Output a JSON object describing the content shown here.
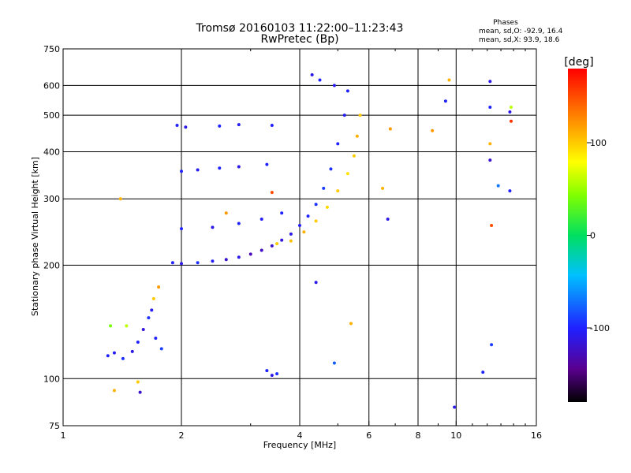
{
  "chart_data": {
    "type": "scatter",
    "title": "Tromsø 20160103 11:22:00–11:23:43",
    "subtitle": "RwPretec (Bp)",
    "xlabel": "Frequency [MHz]",
    "ylabel": "Stationary phase Virtual Height [km]",
    "x_scale": "log",
    "y_scale": "log",
    "xlim": [
      1,
      16
    ],
    "ylim": [
      75,
      750
    ],
    "x_ticks": [
      1,
      2,
      4,
      6,
      8,
      10,
      16
    ],
    "x_tick_labels": [
      "1",
      "2",
      "4",
      "6",
      "8",
      "10",
      "16"
    ],
    "y_ticks": [
      75,
      100,
      200,
      300,
      400,
      500,
      600,
      750
    ],
    "y_tick_labels": [
      "75",
      "100",
      "200",
      "300",
      "400",
      "500",
      "600",
      "750"
    ],
    "grid": true,
    "phases_info": {
      "title": "Phases",
      "line_o": "mean, sd,O:  -92.9, 16.4",
      "line_x": "mean, sd,X:  93.9, 18.6"
    },
    "colorbar": {
      "label": "[deg]",
      "ticks": [
        100,
        0,
        -100
      ],
      "tick_labels": [
        "100",
        "0",
        "-100"
      ],
      "range": [
        -180,
        180
      ]
    },
    "points": [
      {
        "x": 1.3,
        "y": 115,
        "p": -100
      },
      {
        "x": 1.35,
        "y": 117,
        "p": -105
      },
      {
        "x": 1.42,
        "y": 113,
        "p": -95
      },
      {
        "x": 1.5,
        "y": 118,
        "p": -110
      },
      {
        "x": 1.55,
        "y": 125,
        "p": -100
      },
      {
        "x": 1.6,
        "y": 135,
        "p": -115
      },
      {
        "x": 1.65,
        "y": 145,
        "p": -95
      },
      {
        "x": 1.68,
        "y": 152,
        "p": -105
      },
      {
        "x": 1.72,
        "y": 128,
        "p": -100
      },
      {
        "x": 1.78,
        "y": 120,
        "p": -90
      },
      {
        "x": 1.32,
        "y": 138,
        "p": 40
      },
      {
        "x": 1.45,
        "y": 138,
        "p": 60
      },
      {
        "x": 1.7,
        "y": 163,
        "p": 100
      },
      {
        "x": 1.75,
        "y": 175,
        "p": 120
      },
      {
        "x": 1.35,
        "y": 93,
        "p": 110
      },
      {
        "x": 1.55,
        "y": 98,
        "p": 100
      },
      {
        "x": 1.57,
        "y": 92,
        "p": -120
      },
      {
        "x": 1.4,
        "y": 300,
        "p": 110
      },
      {
        "x": 1.9,
        "y": 203,
        "p": -100
      },
      {
        "x": 2.0,
        "y": 202,
        "p": -110
      },
      {
        "x": 2.2,
        "y": 203,
        "p": -95
      },
      {
        "x": 2.4,
        "y": 205,
        "p": -105
      },
      {
        "x": 2.6,
        "y": 207,
        "p": -120
      },
      {
        "x": 2.8,
        "y": 210,
        "p": -110
      },
      {
        "x": 3.0,
        "y": 214,
        "p": -130
      },
      {
        "x": 3.2,
        "y": 219,
        "p": -125
      },
      {
        "x": 3.4,
        "y": 225,
        "p": -120
      },
      {
        "x": 3.6,
        "y": 233,
        "p": -115
      },
      {
        "x": 3.8,
        "y": 242,
        "p": -110
      },
      {
        "x": 4.0,
        "y": 255,
        "p": -105
      },
      {
        "x": 4.2,
        "y": 270,
        "p": -100
      },
      {
        "x": 4.4,
        "y": 290,
        "p": -95
      },
      {
        "x": 4.6,
        "y": 320,
        "p": -90
      },
      {
        "x": 4.8,
        "y": 360,
        "p": -95
      },
      {
        "x": 5.0,
        "y": 420,
        "p": -100
      },
      {
        "x": 5.2,
        "y": 500,
        "p": -105
      },
      {
        "x": 5.3,
        "y": 580,
        "p": -100
      },
      {
        "x": 3.5,
        "y": 228,
        "p": 100
      },
      {
        "x": 3.8,
        "y": 232,
        "p": 105
      },
      {
        "x": 4.1,
        "y": 245,
        "p": 110
      },
      {
        "x": 4.4,
        "y": 262,
        "p": 100
      },
      {
        "x": 4.7,
        "y": 285,
        "p": 95
      },
      {
        "x": 5.0,
        "y": 315,
        "p": 100
      },
      {
        "x": 5.3,
        "y": 350,
        "p": 90
      },
      {
        "x": 5.5,
        "y": 390,
        "p": 100
      },
      {
        "x": 5.6,
        "y": 440,
        "p": 110
      },
      {
        "x": 5.7,
        "y": 500,
        "p": 100
      },
      {
        "x": 2.0,
        "y": 250,
        "p": -100
      },
      {
        "x": 2.4,
        "y": 252,
        "p": -110
      },
      {
        "x": 2.8,
        "y": 258,
        "p": -100
      },
      {
        "x": 3.2,
        "y": 265,
        "p": -105
      },
      {
        "x": 3.6,
        "y": 275,
        "p": -100
      },
      {
        "x": 2.0,
        "y": 355,
        "p": -100
      },
      {
        "x": 2.2,
        "y": 358,
        "p": -105
      },
      {
        "x": 2.5,
        "y": 362,
        "p": -100
      },
      {
        "x": 2.8,
        "y": 365,
        "p": -110
      },
      {
        "x": 3.3,
        "y": 370,
        "p": -100
      },
      {
        "x": 1.95,
        "y": 470,
        "p": -100
      },
      {
        "x": 2.05,
        "y": 465,
        "p": -110
      },
      {
        "x": 2.5,
        "y": 468,
        "p": -100
      },
      {
        "x": 2.8,
        "y": 472,
        "p": -105
      },
      {
        "x": 3.4,
        "y": 470,
        "p": -100
      },
      {
        "x": 4.3,
        "y": 640,
        "p": -110
      },
      {
        "x": 4.5,
        "y": 620,
        "p": -100
      },
      {
        "x": 4.9,
        "y": 600,
        "p": -105
      },
      {
        "x": 3.3,
        "y": 105,
        "p": -100
      },
      {
        "x": 3.4,
        "y": 102,
        "p": -110
      },
      {
        "x": 3.5,
        "y": 103,
        "p": -95
      },
      {
        "x": 6.5,
        "y": 320,
        "p": 110
      },
      {
        "x": 6.8,
        "y": 460,
        "p": 120
      },
      {
        "x": 6.7,
        "y": 265,
        "p": -110
      },
      {
        "x": 8.7,
        "y": 455,
        "p": 120
      },
      {
        "x": 9.6,
        "y": 620,
        "p": 110
      },
      {
        "x": 9.4,
        "y": 545,
        "p": -100
      },
      {
        "x": 9.9,
        "y": 84,
        "p": -110
      },
      {
        "x": 11.7,
        "y": 104,
        "p": -100
      },
      {
        "x": 12.2,
        "y": 615,
        "p": -110
      },
      {
        "x": 12.2,
        "y": 525,
        "p": -100
      },
      {
        "x": 12.2,
        "y": 420,
        "p": 110
      },
      {
        "x": 12.2,
        "y": 380,
        "p": -120
      },
      {
        "x": 12.3,
        "y": 123,
        "p": -90
      },
      {
        "x": 12.3,
        "y": 255,
        "p": 150
      },
      {
        "x": 12.8,
        "y": 325,
        "p": -70
      },
      {
        "x": 13.7,
        "y": 510,
        "p": -110
      },
      {
        "x": 13.8,
        "y": 525,
        "p": 60
      },
      {
        "x": 13.7,
        "y": 315,
        "p": -100
      },
      {
        "x": 13.8,
        "y": 482,
        "p": 160
      },
      {
        "x": 4.4,
        "y": 180,
        "p": -110
      },
      {
        "x": 4.9,
        "y": 110,
        "p": -80
      },
      {
        "x": 5.4,
        "y": 140,
        "p": 110
      },
      {
        "x": 2.6,
        "y": 275,
        "p": 120
      },
      {
        "x": 3.4,
        "y": 312,
        "p": 150
      }
    ]
  }
}
